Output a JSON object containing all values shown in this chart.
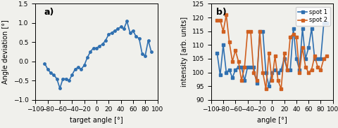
{
  "plot_a": {
    "label": "a)",
    "x": [
      -85,
      -80,
      -75,
      -70,
      -65,
      -60,
      -55,
      -50,
      -45,
      -40,
      -35,
      -30,
      -25,
      -20,
      -15,
      -10,
      -5,
      0,
      5,
      10,
      15,
      20,
      25,
      30,
      35,
      40,
      45,
      50,
      55,
      60,
      65,
      70,
      75,
      80,
      85,
      90
    ],
    "y": [
      -0.05,
      -0.2,
      -0.3,
      -0.35,
      -0.45,
      -0.7,
      -0.45,
      -0.45,
      -0.5,
      -0.35,
      -0.2,
      -0.15,
      -0.2,
      -0.1,
      0.1,
      0.25,
      0.35,
      0.35,
      0.4,
      0.45,
      0.55,
      0.7,
      0.75,
      0.8,
      0.85,
      0.9,
      0.85,
      1.05,
      0.75,
      0.8,
      0.65,
      0.6,
      0.2,
      0.15,
      0.55,
      0.25
    ],
    "xlabel": "target angle [°]",
    "ylabel": "Angle deviation [°]",
    "xlim": [
      -100,
      100
    ],
    "ylim": [
      -1,
      1.5
    ],
    "yticks": [
      -1,
      -0.5,
      0,
      0.5,
      1,
      1.5
    ],
    "xticks": [
      -100,
      -80,
      -60,
      -40,
      -20,
      0,
      20,
      40,
      60,
      80,
      100
    ],
    "color": "#3070b0",
    "linewidth": 1.2,
    "marker": "o",
    "markersize": 2.5
  },
  "plot_b": {
    "label": "b)",
    "x_spot1": [
      -90,
      -85,
      -80,
      -75,
      -70,
      -65,
      -60,
      -55,
      -50,
      -45,
      -40,
      -35,
      -30,
      -25,
      -20,
      -15,
      -10,
      -5,
      0,
      5,
      10,
      15,
      20,
      25,
      30,
      35,
      40,
      45,
      50,
      55,
      60,
      65,
      70,
      75,
      80,
      85,
      90
    ],
    "spot1": [
      107,
      99,
      110,
      100,
      101,
      98,
      101,
      102,
      102,
      97,
      102,
      102,
      102,
      96,
      115,
      115,
      100,
      95,
      100,
      101,
      100,
      101,
      105,
      101,
      101,
      116,
      105,
      101,
      116,
      105,
      109,
      116,
      105,
      105,
      105,
      118,
      118
    ],
    "x_spot2": [
      -90,
      -85,
      -80,
      -75,
      -70,
      -65,
      -60,
      -55,
      -50,
      -45,
      -40,
      -35,
      -30,
      -25,
      -20,
      -15,
      -10,
      -5,
      0,
      5,
      10,
      15,
      20,
      25,
      30,
      35,
      40,
      45,
      50,
      55,
      60,
      65,
      70,
      75,
      80,
      85,
      90
    ],
    "spot2": [
      119,
      119,
      115,
      121,
      111,
      104,
      108,
      104,
      97,
      102,
      115,
      115,
      100,
      97,
      115,
      100,
      94,
      107,
      97,
      106,
      97,
      94,
      107,
      101,
      113,
      114,
      113,
      100,
      109,
      102,
      100,
      101,
      106,
      102,
      101,
      105,
      106
    ],
    "xlabel": "angle [°]",
    "ylabel": "intensity [arb. units]",
    "xlim": [
      -100,
      100
    ],
    "ylim": [
      90,
      125
    ],
    "yticks": [
      90,
      95,
      100,
      105,
      110,
      115,
      120,
      125
    ],
    "xticks": [
      -100,
      -80,
      -60,
      -40,
      -20,
      0,
      20,
      40,
      60,
      80,
      100
    ],
    "color_spot1": "#3070b0",
    "color_spot2": "#d06020",
    "linewidth": 1.2,
    "marker": "s",
    "markersize": 2.5,
    "legend_spot1": "spot 1",
    "legend_spot2": "spot 2"
  },
  "figure_bg": "#f0f0ec"
}
